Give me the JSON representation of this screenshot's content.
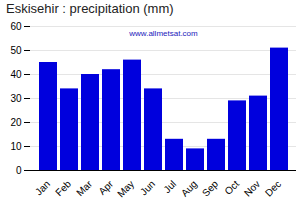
{
  "chart_data": {
    "type": "bar",
    "title": "Eskisehir : precipitation (mm)",
    "categories": [
      "Jan",
      "Feb",
      "Mar",
      "Apr",
      "May",
      "Jun",
      "Jul",
      "Aug",
      "Sep",
      "Oct",
      "Nov",
      "Dec"
    ],
    "values": [
      45,
      34,
      40,
      42,
      46,
      34,
      13,
      9,
      13,
      29,
      31,
      51
    ],
    "color": "#0000dd",
    "ylim": [
      0,
      60
    ],
    "yticks": [
      0,
      10,
      20,
      30,
      40,
      50,
      60
    ],
    "grid": true,
    "annotations": [
      "www.allmetsat.com"
    ]
  }
}
